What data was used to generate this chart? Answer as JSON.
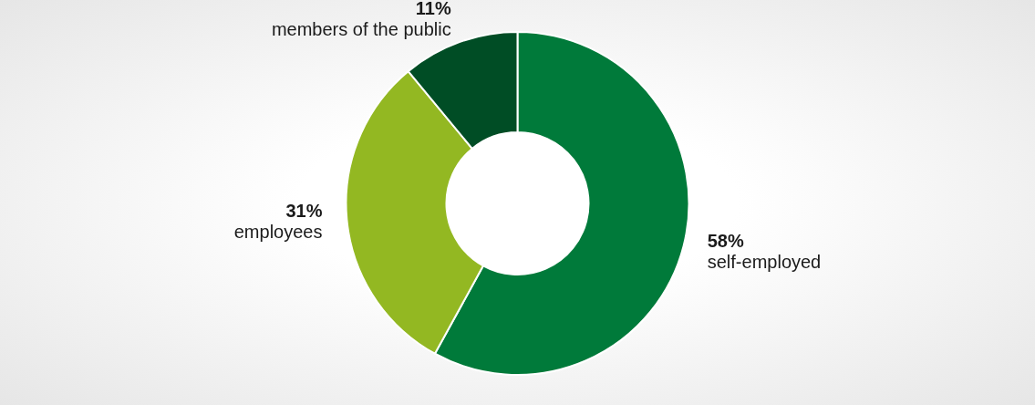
{
  "chart_data": {
    "type": "donut",
    "categories": [
      "self-employed",
      "employees",
      "members of the public"
    ],
    "values": [
      58,
      31,
      11
    ],
    "colors": [
      "#007a3a",
      "#93b822",
      "#004d25"
    ],
    "value_labels": [
      "58%",
      "31%",
      "11%"
    ],
    "legend": false
  }
}
